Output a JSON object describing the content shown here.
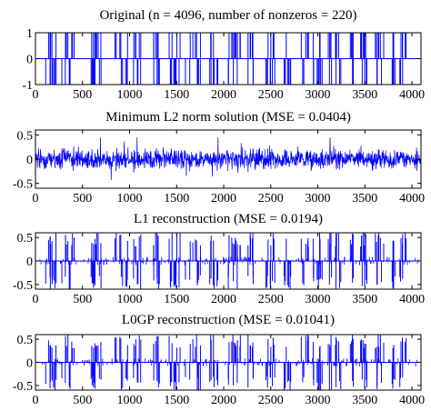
{
  "chart_data": [
    {
      "type": "line",
      "title": "Original (n = 4096, number of nonzeros = 220)",
      "xlim": [
        0,
        4096
      ],
      "ylim": [
        -1,
        1
      ],
      "xticks": [
        "0",
        "500",
        "1000",
        "1500",
        "2000",
        "2500",
        "3000",
        "3500",
        "4000"
      ],
      "yticks": [
        "-1",
        "0",
        "1"
      ],
      "series": [
        {
          "kind": "sparse spikes of amplitude ±1 (220 nonzeros)",
          "color": "#0000ff"
        }
      ]
    },
    {
      "type": "line",
      "title": "Minimum L2 norm solution (MSE = 0.0404)",
      "xlim": [
        0,
        4096
      ],
      "ylim": [
        -0.6,
        0.6
      ],
      "xticks": [
        "0",
        "500",
        "1000",
        "1500",
        "2000",
        "2500",
        "3000",
        "3500",
        "4000"
      ],
      "yticks": [
        "-0.5",
        "0",
        "0.5"
      ],
      "series": [
        {
          "kind": "dense low-amplitude noise, roughly within ±0.4",
          "color": "#0000ff"
        }
      ]
    },
    {
      "type": "line",
      "title": "L1 reconstruction (MSE = 0.0194)",
      "xlim": [
        0,
        4096
      ],
      "ylim": [
        -0.6,
        0.6
      ],
      "xticks": [
        "0",
        "500",
        "1000",
        "1500",
        "2000",
        "2500",
        "3000",
        "3500",
        "4000"
      ],
      "yticks": [
        "-0.5",
        "0",
        "0.5"
      ],
      "series": [
        {
          "kind": "sparse spikes with small artifacts, amplitude up to about ±0.6",
          "color": "#0000ff"
        }
      ]
    },
    {
      "type": "line",
      "title": "L0GP reconstruction (MSE = 0.01041)",
      "xlim": [
        0,
        4096
      ],
      "ylim": [
        -0.6,
        0.6
      ],
      "xticks": [
        "0",
        "500",
        "1000",
        "1500",
        "2000",
        "2500",
        "3000",
        "3500",
        "4000"
      ],
      "yticks": [
        "-0.5",
        "0",
        "0.5"
      ],
      "series": [
        {
          "kind": "sparse spikes with small artifacts, amplitude up to about ±0.6",
          "color": "#0000ff"
        }
      ]
    }
  ]
}
